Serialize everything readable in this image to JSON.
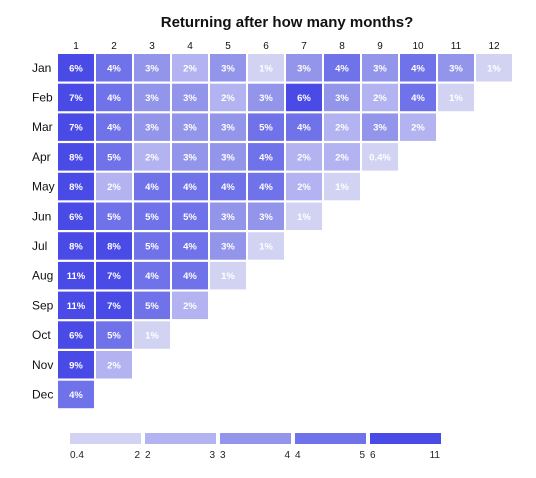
{
  "chart_data": {
    "type": "heatmap",
    "title": "Returning after how many months?",
    "columns": [
      "1",
      "2",
      "3",
      "4",
      "5",
      "6",
      "7",
      "8",
      "9",
      "10",
      "11",
      "12"
    ],
    "rows": [
      "Jan",
      "Feb",
      "Mar",
      "Apr",
      "May",
      "Jun",
      "Jul",
      "Aug",
      "Sep",
      "Oct",
      "Nov",
      "Dec"
    ],
    "values": [
      [
        6,
        4,
        3,
        2,
        3,
        1,
        3,
        4,
        3,
        4,
        3,
        1
      ],
      [
        7,
        4,
        3,
        3,
        2,
        3,
        6,
        3,
        2,
        4,
        1
      ],
      [
        7,
        4,
        3,
        3,
        3,
        5,
        4,
        2,
        3,
        2
      ],
      [
        8,
        5,
        2,
        3,
        3,
        4,
        2,
        2,
        0.4
      ],
      [
        8,
        2,
        4,
        4,
        4,
        4,
        2,
        1
      ],
      [
        6,
        5,
        5,
        5,
        3,
        3,
        1
      ],
      [
        8,
        8,
        5,
        4,
        3,
        1
      ],
      [
        11,
        7,
        4,
        4,
        1
      ],
      [
        11,
        7,
        5,
        2
      ],
      [
        6,
        5,
        1
      ],
      [
        9,
        2
      ],
      [
        4
      ]
    ],
    "labels": [
      [
        "6%",
        "4%",
        "3%",
        "2%",
        "3%",
        "1%",
        "3%",
        "4%",
        "3%",
        "4%",
        "3%",
        "1%"
      ],
      [
        "7%",
        "4%",
        "3%",
        "3%",
        "2%",
        "3%",
        "6%",
        "3%",
        "2%",
        "4%",
        "1%"
      ],
      [
        "7%",
        "4%",
        "3%",
        "3%",
        "3%",
        "5%",
        "4%",
        "2%",
        "3%",
        "2%"
      ],
      [
        "8%",
        "5%",
        "2%",
        "3%",
        "3%",
        "4%",
        "2%",
        "2%",
        "0.4%"
      ],
      [
        "8%",
        "2%",
        "4%",
        "4%",
        "4%",
        "4%",
        "2%",
        "1%"
      ],
      [
        "6%",
        "5%",
        "5%",
        "5%",
        "3%",
        "3%",
        "1%"
      ],
      [
        "8%",
        "8%",
        "5%",
        "4%",
        "3%",
        "1%"
      ],
      [
        "11%",
        "7%",
        "4%",
        "4%",
        "1%"
      ],
      [
        "11%",
        "7%",
        "5%",
        "2%"
      ],
      [
        "6%",
        "5%",
        "1%"
      ],
      [
        "9%",
        "2%"
      ],
      [
        "4%"
      ]
    ],
    "legend": {
      "thresholds": [
        2,
        3,
        4,
        6
      ],
      "colors": [
        "#d2d3f3",
        "#b2b3f0",
        "#9395eb",
        "#7072e9",
        "#4a4be6"
      ],
      "bins": [
        {
          "min": "0.4",
          "max": "2"
        },
        {
          "min": "2",
          "max": "3"
        },
        {
          "min": "3",
          "max": "4"
        },
        {
          "min": "4",
          "max": "5"
        },
        {
          "min": "6",
          "max": "11"
        }
      ]
    }
  }
}
